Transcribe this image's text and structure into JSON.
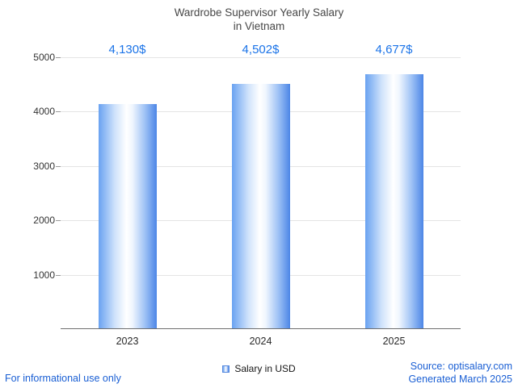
{
  "title": {
    "line1": "Wardrobe Supervisor Yearly Salary",
    "line2": "in Vietnam"
  },
  "chart_data": {
    "type": "bar",
    "title": "Wardrobe Supervisor Yearly Salary in Vietnam",
    "categories": [
      "2023",
      "2024",
      "2025"
    ],
    "values": [
      4130,
      4502,
      4677
    ],
    "value_labels": [
      "4,130$",
      "4,502$",
      "4,677$"
    ],
    "series_name": "Salary in USD",
    "xlabel": "",
    "ylabel": "",
    "ylim": [
      0,
      5000
    ],
    "yticks": [
      1000,
      2000,
      3000,
      4000,
      5000
    ],
    "grid": true,
    "legend_position": "bottom",
    "bar_gradient": [
      "#69a2f1",
      "#ffffff",
      "#4c86e6"
    ],
    "value_label_color": "#1a73e8"
  },
  "legend": {
    "label": "Salary in USD"
  },
  "footer": {
    "left": "For informational use only",
    "source": "Source: optisalary.com",
    "generated": "Generated March 2025"
  },
  "colors": {
    "accent_blue": "#1a73e8",
    "footer_link_blue": "#1a5fd4",
    "title_gray": "#474747",
    "gridline_gray": "#e4e4e4"
  }
}
